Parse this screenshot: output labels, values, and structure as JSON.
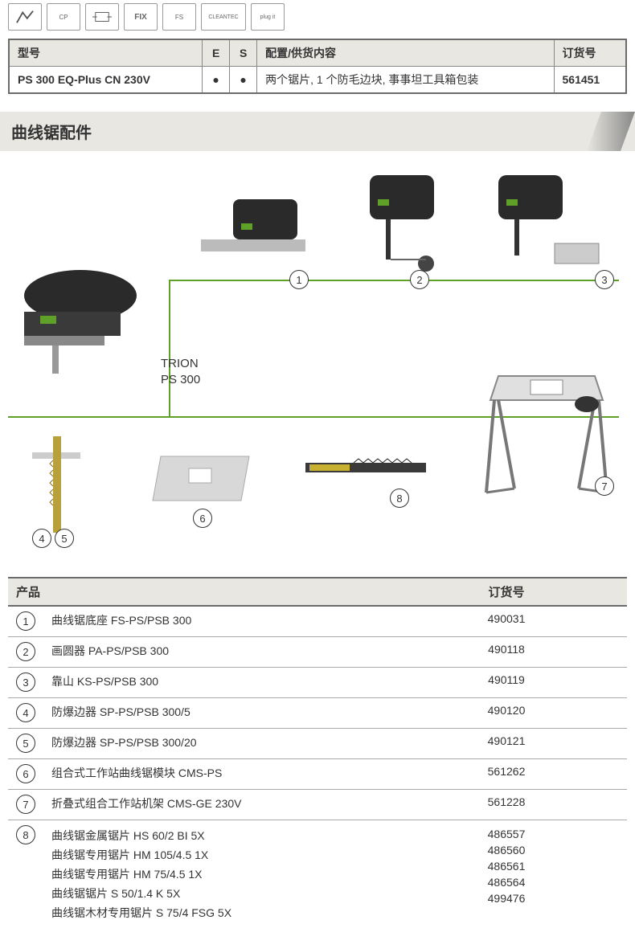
{
  "icon_labels": [
    "",
    "CP",
    "",
    "FIX",
    "FS",
    "CLEANTEC",
    "plug it"
  ],
  "top_table": {
    "headers": {
      "model": "型号",
      "e": "E",
      "s": "S",
      "config": "配置/供货内容",
      "order": "订货号"
    },
    "row": {
      "model": "PS 300 EQ-Plus CN 230V",
      "e": "●",
      "s": "●",
      "config": "两个锯片, 1 个防毛边块, 事事坦工具箱包装",
      "order": "561451"
    }
  },
  "section_title": "曲线锯配件",
  "main_product_label": "TRION\nPS 300",
  "diagram_numbers": [
    "1",
    "2",
    "3",
    "4",
    "5",
    "6",
    "7",
    "8"
  ],
  "prod_table": {
    "headers": {
      "product": "产品",
      "order": "订货号"
    },
    "rows": [
      {
        "n": "1",
        "name": "曲线锯底座 FS-PS/PSB 300",
        "order": "490031"
      },
      {
        "n": "2",
        "name": "画圆器 PA-PS/PSB 300",
        "order": "490118"
      },
      {
        "n": "3",
        "name": "靠山 KS-PS/PSB 300",
        "order": "490119"
      },
      {
        "n": "4",
        "name": "防爆边器 SP-PS/PSB 300/5",
        "order": "490120"
      },
      {
        "n": "5",
        "name": "防爆边器 SP-PS/PSB 300/20",
        "order": "490121"
      },
      {
        "n": "6",
        "name": "组合式工作站曲线锯模块 CMS-PS",
        "order": "561262"
      },
      {
        "n": "7",
        "name": "折叠式组合工作站机架 CMS-GE 230V",
        "order": "561228"
      }
    ],
    "multi_row": {
      "n": "8",
      "items": [
        {
          "name": "曲线锯金属锯片 HS 60/2 BI 5X",
          "order": "486557"
        },
        {
          "name": "曲线锯专用锯片 HM 105/4.5 1X",
          "order": "486560"
        },
        {
          "name": "曲线锯专用锯片 HM 75/4.5 1X",
          "order": "486561"
        },
        {
          "name": "曲线锯锯片 S 50/1.4 K 5X",
          "order": "486564"
        },
        {
          "name": "曲线锯木材专用锯片 S 75/4 FSG 5X",
          "order": "499476"
        }
      ]
    }
  },
  "colors": {
    "header_bg": "#e8e7e1",
    "border": "#6b6b6b",
    "green": "#5fa028"
  }
}
